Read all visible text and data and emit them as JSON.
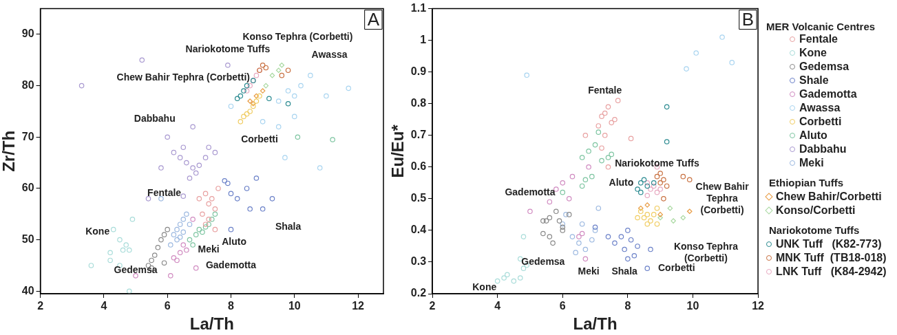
{
  "chart_data": [
    {
      "type": "scatter",
      "title": "A",
      "xlabel": "La/Th",
      "ylabel": "Zr/Th",
      "xlim": [
        2,
        12.8
      ],
      "ylim": [
        39.5,
        95
      ],
      "xticks": [
        2,
        4,
        6,
        8,
        10,
        12
      ],
      "yticks": [
        40,
        50,
        60,
        70,
        80,
        90
      ],
      "series": [
        {
          "color": "#e8a0a0",
          "marker": "circle",
          "x": [
            7.0,
            7.2,
            7.4,
            7.3,
            7.5,
            7.6,
            7.1,
            7.3,
            7.2,
            7.5
          ],
          "values": [
            58,
            59,
            58,
            57,
            56,
            60,
            55,
            54,
            53,
            52
          ]
        },
        {
          "color": "#a8dcd9",
          "marker": "circle",
          "x": [
            4.2,
            4.3,
            4.5,
            4.6,
            4.7,
            4.9,
            4.8,
            4.2,
            4.5,
            3.6,
            4.8
          ],
          "values": [
            46,
            52,
            50,
            48,
            49,
            54,
            48,
            47.5,
            45,
            45,
            40
          ]
        },
        {
          "color": "#888888",
          "marker": "circle",
          "x": [
            5.4,
            5.5,
            5.6,
            5.8,
            5.9,
            6.0,
            5.7,
            5.5,
            5.9
          ],
          "values": [
            45,
            46,
            47,
            50,
            51,
            52,
            48.5,
            44.5,
            45.5
          ]
        },
        {
          "color": "#6a80c8",
          "marker": "circle",
          "x": [
            7.9,
            8.0,
            8.2,
            8.5,
            8.6,
            9.0,
            9.3,
            7.8,
            8.0,
            8.8
          ],
          "values": [
            61,
            59,
            58,
            60,
            56,
            56,
            58,
            61.5,
            52,
            62
          ]
        },
        {
          "color": "#d08ac0",
          "marker": "circle",
          "x": [
            6.3,
            6.4,
            6.5,
            6.6,
            6.9,
            6.1,
            6.8,
            5.0,
            6.2
          ],
          "values": [
            46,
            47.5,
            49,
            48,
            44.5,
            43,
            54,
            43,
            46.5
          ]
        },
        {
          "color": "#a8d4f0",
          "marker": "circle",
          "x": [
            9.5,
            9.8,
            10.0,
            10.2,
            10.5,
            11.0,
            9.0,
            9.5,
            10.0,
            11.7,
            10.8,
            9.7,
            8.0
          ],
          "values": [
            77,
            79,
            78,
            80,
            82,
            78,
            73,
            72,
            74,
            79.5,
            64,
            66,
            76
          ]
        },
        {
          "color": "#f0cc60",
          "marker": "circle",
          "x": [
            8.4,
            8.5,
            8.6,
            8.7,
            8.8,
            8.9,
            8.3
          ],
          "values": [
            74,
            74.5,
            75,
            76,
            77,
            78,
            73
          ]
        },
        {
          "color": "#7cc4a0",
          "marker": "circle",
          "x": [
            6.7,
            6.9,
            7.0,
            7.2,
            7.3,
            7.4,
            7.5,
            6.8,
            7.1,
            10.1,
            11.2
          ],
          "values": [
            50,
            51,
            52,
            52.5,
            53,
            54,
            55,
            49,
            51.5,
            70,
            69.5
          ]
        },
        {
          "color": "#a898d0",
          "marker": "circle",
          "x": [
            6.4,
            6.5,
            6.6,
            6.8,
            7.0,
            7.2,
            7.3,
            7.5,
            6.7,
            6.9,
            5.8,
            6.2,
            3.3,
            5.2,
            7.9,
            6.5,
            5.4,
            6.8,
            6.0
          ],
          "values": [
            66,
            68,
            65,
            64,
            64.5,
            66,
            68,
            67,
            62,
            63,
            64,
            67,
            80,
            85,
            84,
            58.5,
            58,
            72,
            70
          ]
        },
        {
          "color": "#9bb8e0",
          "marker": "circle",
          "x": [
            6.2,
            6.3,
            6.4,
            6.5,
            6.6,
            6.3,
            6.1,
            6.7,
            6.5,
            6.4,
            5.8
          ],
          "values": [
            51,
            52,
            53,
            54,
            55,
            50,
            49,
            53,
            51.5,
            50.5,
            58
          ]
        },
        {
          "color": "#e89a40",
          "marker": "diamond",
          "x": [
            8.6,
            8.8,
            9.0,
            8.7
          ],
          "values": [
            77,
            78,
            79,
            76.5
          ]
        },
        {
          "color": "#a8d8a0",
          "marker": "diamond",
          "x": [
            9.1,
            9.3,
            9.5,
            9.6
          ],
          "values": [
            80,
            82,
            83,
            84
          ]
        },
        {
          "color": "#2a8a90",
          "marker": "circle",
          "x": [
            8.2,
            8.3,
            8.4,
            8.5,
            8.7,
            9.2,
            9.8
          ],
          "values": [
            77.5,
            78,
            79,
            80,
            81,
            77.5,
            76.5
          ]
        },
        {
          "color": "#c87040",
          "marker": "circle",
          "x": [
            8.9,
            9.0,
            9.1,
            9.6,
            9.8
          ],
          "values": [
            83,
            84,
            83.5,
            82,
            83
          ]
        },
        {
          "color": "#e8a8c0",
          "marker": "circle",
          "x": [
            8.5,
            8.6,
            8.7,
            8.8,
            8.9
          ],
          "values": [
            79,
            80,
            81,
            82,
            83
          ]
        }
      ],
      "annotations": [
        "Konso Tephra (Corbetti)",
        "Nariokotome Tuffs",
        "Awassa",
        "Chew Bahir Tephra (Corbetti)",
        "Dabbahu",
        "Corbetti",
        "Fentale",
        "Shala",
        "Kone",
        "Aluto",
        "Meki",
        "Gedemsa",
        "Gademotta"
      ]
    },
    {
      "type": "scatter",
      "title": "B",
      "xlabel": "La/Th",
      "ylabel": "Eu/Eu*",
      "xlim": [
        2,
        12
      ],
      "ylim": [
        0.2,
        1.1
      ],
      "xticks": [
        2,
        4,
        6,
        8,
        10,
        12
      ],
      "yticks": [
        0.2,
        0.3,
        0.4,
        0.5,
        0.6,
        0.7,
        0.8,
        0.9,
        1.0,
        1.1
      ],
      "legend": "right",
      "legend_title": "MER  Volcanic Centres",
      "series": [
        {
          "name": "Fentale",
          "color": "#e8a0a0",
          "marker": "circle",
          "x": [
            6.7,
            7.1,
            7.2,
            7.3,
            7.4,
            7.6,
            7.7,
            7.5,
            7.3,
            8.1,
            7.2,
            7.4
          ],
          "values": [
            0.7,
            0.73,
            0.76,
            0.77,
            0.79,
            0.75,
            0.81,
            0.74,
            0.7,
            0.69,
            0.66,
            0.6
          ]
        },
        {
          "name": "Kone",
          "color": "#a8dcd9",
          "marker": "circle",
          "x": [
            4.0,
            4.2,
            4.3,
            4.5,
            4.7,
            4.8,
            4.9,
            4.7,
            4.8
          ],
          "values": [
            0.24,
            0.25,
            0.26,
            0.24,
            0.25,
            0.28,
            0.29,
            0.31,
            0.38
          ]
        },
        {
          "name": "Gedemsa",
          "color": "#888888",
          "marker": "circle",
          "x": [
            5.4,
            5.5,
            5.6,
            5.8,
            5.9,
            5.6,
            5.4,
            5.7,
            6.0,
            6.2,
            6.0
          ],
          "values": [
            0.43,
            0.43,
            0.44,
            0.46,
            0.43,
            0.38,
            0.39,
            0.36,
            0.4,
            0.45,
            0.41
          ]
        },
        {
          "name": "Shale",
          "color": "#6a80c8",
          "marker": "circle",
          "x": [
            7.0,
            7.4,
            7.6,
            7.8,
            8.0,
            8.1,
            8.3,
            7.9,
            8.0,
            8.7,
            8.6,
            8.2
          ],
          "values": [
            0.41,
            0.38,
            0.36,
            0.38,
            0.4,
            0.37,
            0.35,
            0.34,
            0.31,
            0.34,
            0.28,
            0.32
          ]
        },
        {
          "name": "Gademotta",
          "color": "#d08ac0",
          "marker": "circle",
          "x": [
            5.0,
            5.6,
            5.8,
            6.0,
            6.3,
            6.5,
            6.6,
            6.8,
            6.7,
            6.2
          ],
          "values": [
            0.46,
            0.49,
            0.53,
            0.55,
            0.57,
            0.38,
            0.39,
            0.6,
            0.31,
            0.5
          ]
        },
        {
          "name": "Awassa",
          "color": "#a8d4f0",
          "marker": "circle",
          "x": [
            4.9,
            9.8,
            10.1,
            10.9,
            11.2
          ],
          "values": [
            0.89,
            0.91,
            0.96,
            1.01,
            0.93
          ]
        },
        {
          "name": "Corbetti",
          "color": "#f0cc60",
          "marker": "circle",
          "x": [
            8.4,
            8.5,
            8.6,
            8.7,
            8.8,
            8.9,
            8.6,
            8.9,
            8.3
          ],
          "values": [
            0.46,
            0.44,
            0.45,
            0.43,
            0.45,
            0.47,
            0.42,
            0.42,
            0.44
          ]
        },
        {
          "name": "Aluto",
          "color": "#7cc4a0",
          "marker": "circle",
          "x": [
            6.6,
            6.8,
            7.0,
            7.1,
            7.2,
            7.4,
            7.5,
            6.7,
            6.9,
            6.6,
            6.0
          ],
          "values": [
            0.63,
            0.65,
            0.67,
            0.71,
            0.62,
            0.63,
            0.64,
            0.56,
            0.57,
            0.54,
            0.52
          ]
        },
        {
          "name": "Dabbahu",
          "color": "#a898d0",
          "marker": "circle"
        },
        {
          "name": "Meki",
          "color": "#9bb8e0",
          "marker": "circle",
          "x": [
            6.0,
            6.3,
            6.5,
            6.7,
            6.9,
            7.0,
            6.4,
            6.6,
            6.1,
            7.1
          ],
          "values": [
            0.42,
            0.38,
            0.36,
            0.34,
            0.37,
            0.4,
            0.33,
            0.42,
            0.45,
            0.47
          ]
        },
        {
          "name": "Chew Bahir/Corbetti",
          "color": "#e89a40",
          "marker": "diamond",
          "x": [
            8.4,
            9.0,
            9.9,
            8.6
          ],
          "values": [
            0.47,
            0.45,
            0.46,
            0.48
          ]
        },
        {
          "name": "Konso/Corbetti",
          "color": "#a8d8a0",
          "marker": "diamond",
          "x": [
            9.0,
            9.4,
            9.7,
            9.3
          ],
          "values": [
            0.44,
            0.43,
            0.44,
            0.47
          ]
        },
        {
          "name": "UNK Tuff   (K82-773)",
          "color": "#2a8a90",
          "marker": "circle",
          "x": [
            8.3,
            8.4,
            8.5,
            8.6,
            8.8,
            9.2,
            9.2,
            8.4
          ],
          "values": [
            0.53,
            0.55,
            0.56,
            0.54,
            0.55,
            0.79,
            0.68,
            0.52
          ]
        },
        {
          "name": "MNK Tuff  (TB18-018)",
          "color": "#c87040",
          "marker": "circle",
          "x": [
            8.9,
            9.0,
            9.1,
            9.2,
            9.7,
            9.9,
            9.0,
            9.1
          ],
          "values": [
            0.57,
            0.55,
            0.56,
            0.54,
            0.57,
            0.56,
            0.58,
            0.5
          ]
        },
        {
          "name": "LNK Tuff   (K84-2942)",
          "color": "#e8a8c0",
          "marker": "circle",
          "x": [
            8.6,
            8.7,
            8.8,
            8.9,
            8.6,
            9.0,
            8.9
          ],
          "values": [
            0.55,
            0.53,
            0.54,
            0.52,
            0.51,
            0.53,
            0.6
          ]
        }
      ],
      "annotations": [
        "Ethiopian Tuffs",
        "Nariokotome Tuffs",
        "Fentale",
        "Aluto",
        "Nariokotome Tuffs",
        "Chew Bahir Tephra (Corbetti)",
        "Gademotta",
        "Gedemsa",
        "Kone",
        "Meki",
        "Shala",
        "Corbetti",
        "Konso Tephra (Corbetti)"
      ]
    }
  ]
}
